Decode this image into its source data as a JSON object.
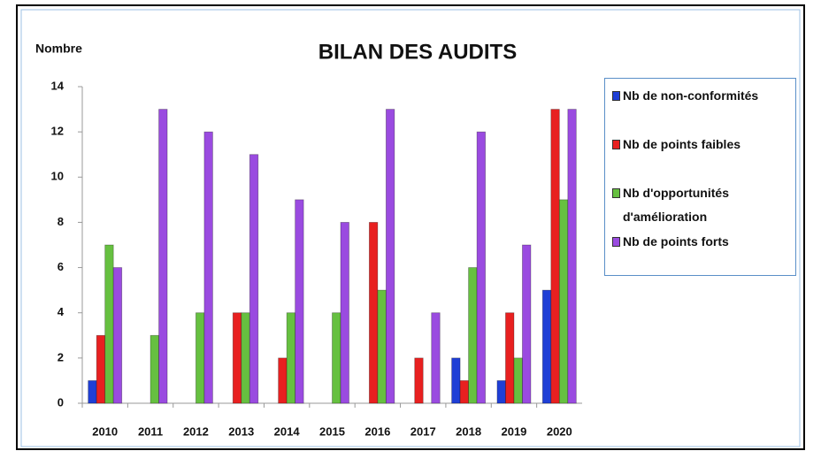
{
  "chart_data": {
    "type": "bar",
    "title": "BILAN DES AUDITS",
    "y_label": "Nombre",
    "categories": [
      "2010",
      "2011",
      "2012",
      "2013",
      "2014",
      "2015",
      "2016",
      "2017",
      "2018",
      "2019",
      "2020"
    ],
    "series": [
      {
        "name": "Nb de non-conformités",
        "color": "#1f3fd6",
        "values": [
          1,
          0,
          0,
          0,
          0,
          0,
          0,
          0,
          2,
          1,
          5
        ]
      },
      {
        "name": "Nb de points faibles",
        "color": "#e82020",
        "values": [
          3,
          0,
          0,
          4,
          2,
          0,
          8,
          2,
          1,
          4,
          13
        ]
      },
      {
        "name": "Nb d'opportunités d'amélioration",
        "color": "#66c040",
        "values": [
          7,
          3,
          4,
          4,
          4,
          4,
          5,
          0,
          6,
          2,
          9
        ]
      },
      {
        "name": "Nb de points forts",
        "color": "#9a4be0",
        "values": [
          6,
          13,
          12,
          11,
          9,
          8,
          13,
          4,
          12,
          7,
          13
        ]
      }
    ],
    "ylim": [
      0,
      14
    ],
    "yticks": [
      0,
      2,
      4,
      6,
      8,
      10,
      12,
      14
    ],
    "grid": false,
    "legend": "right"
  }
}
